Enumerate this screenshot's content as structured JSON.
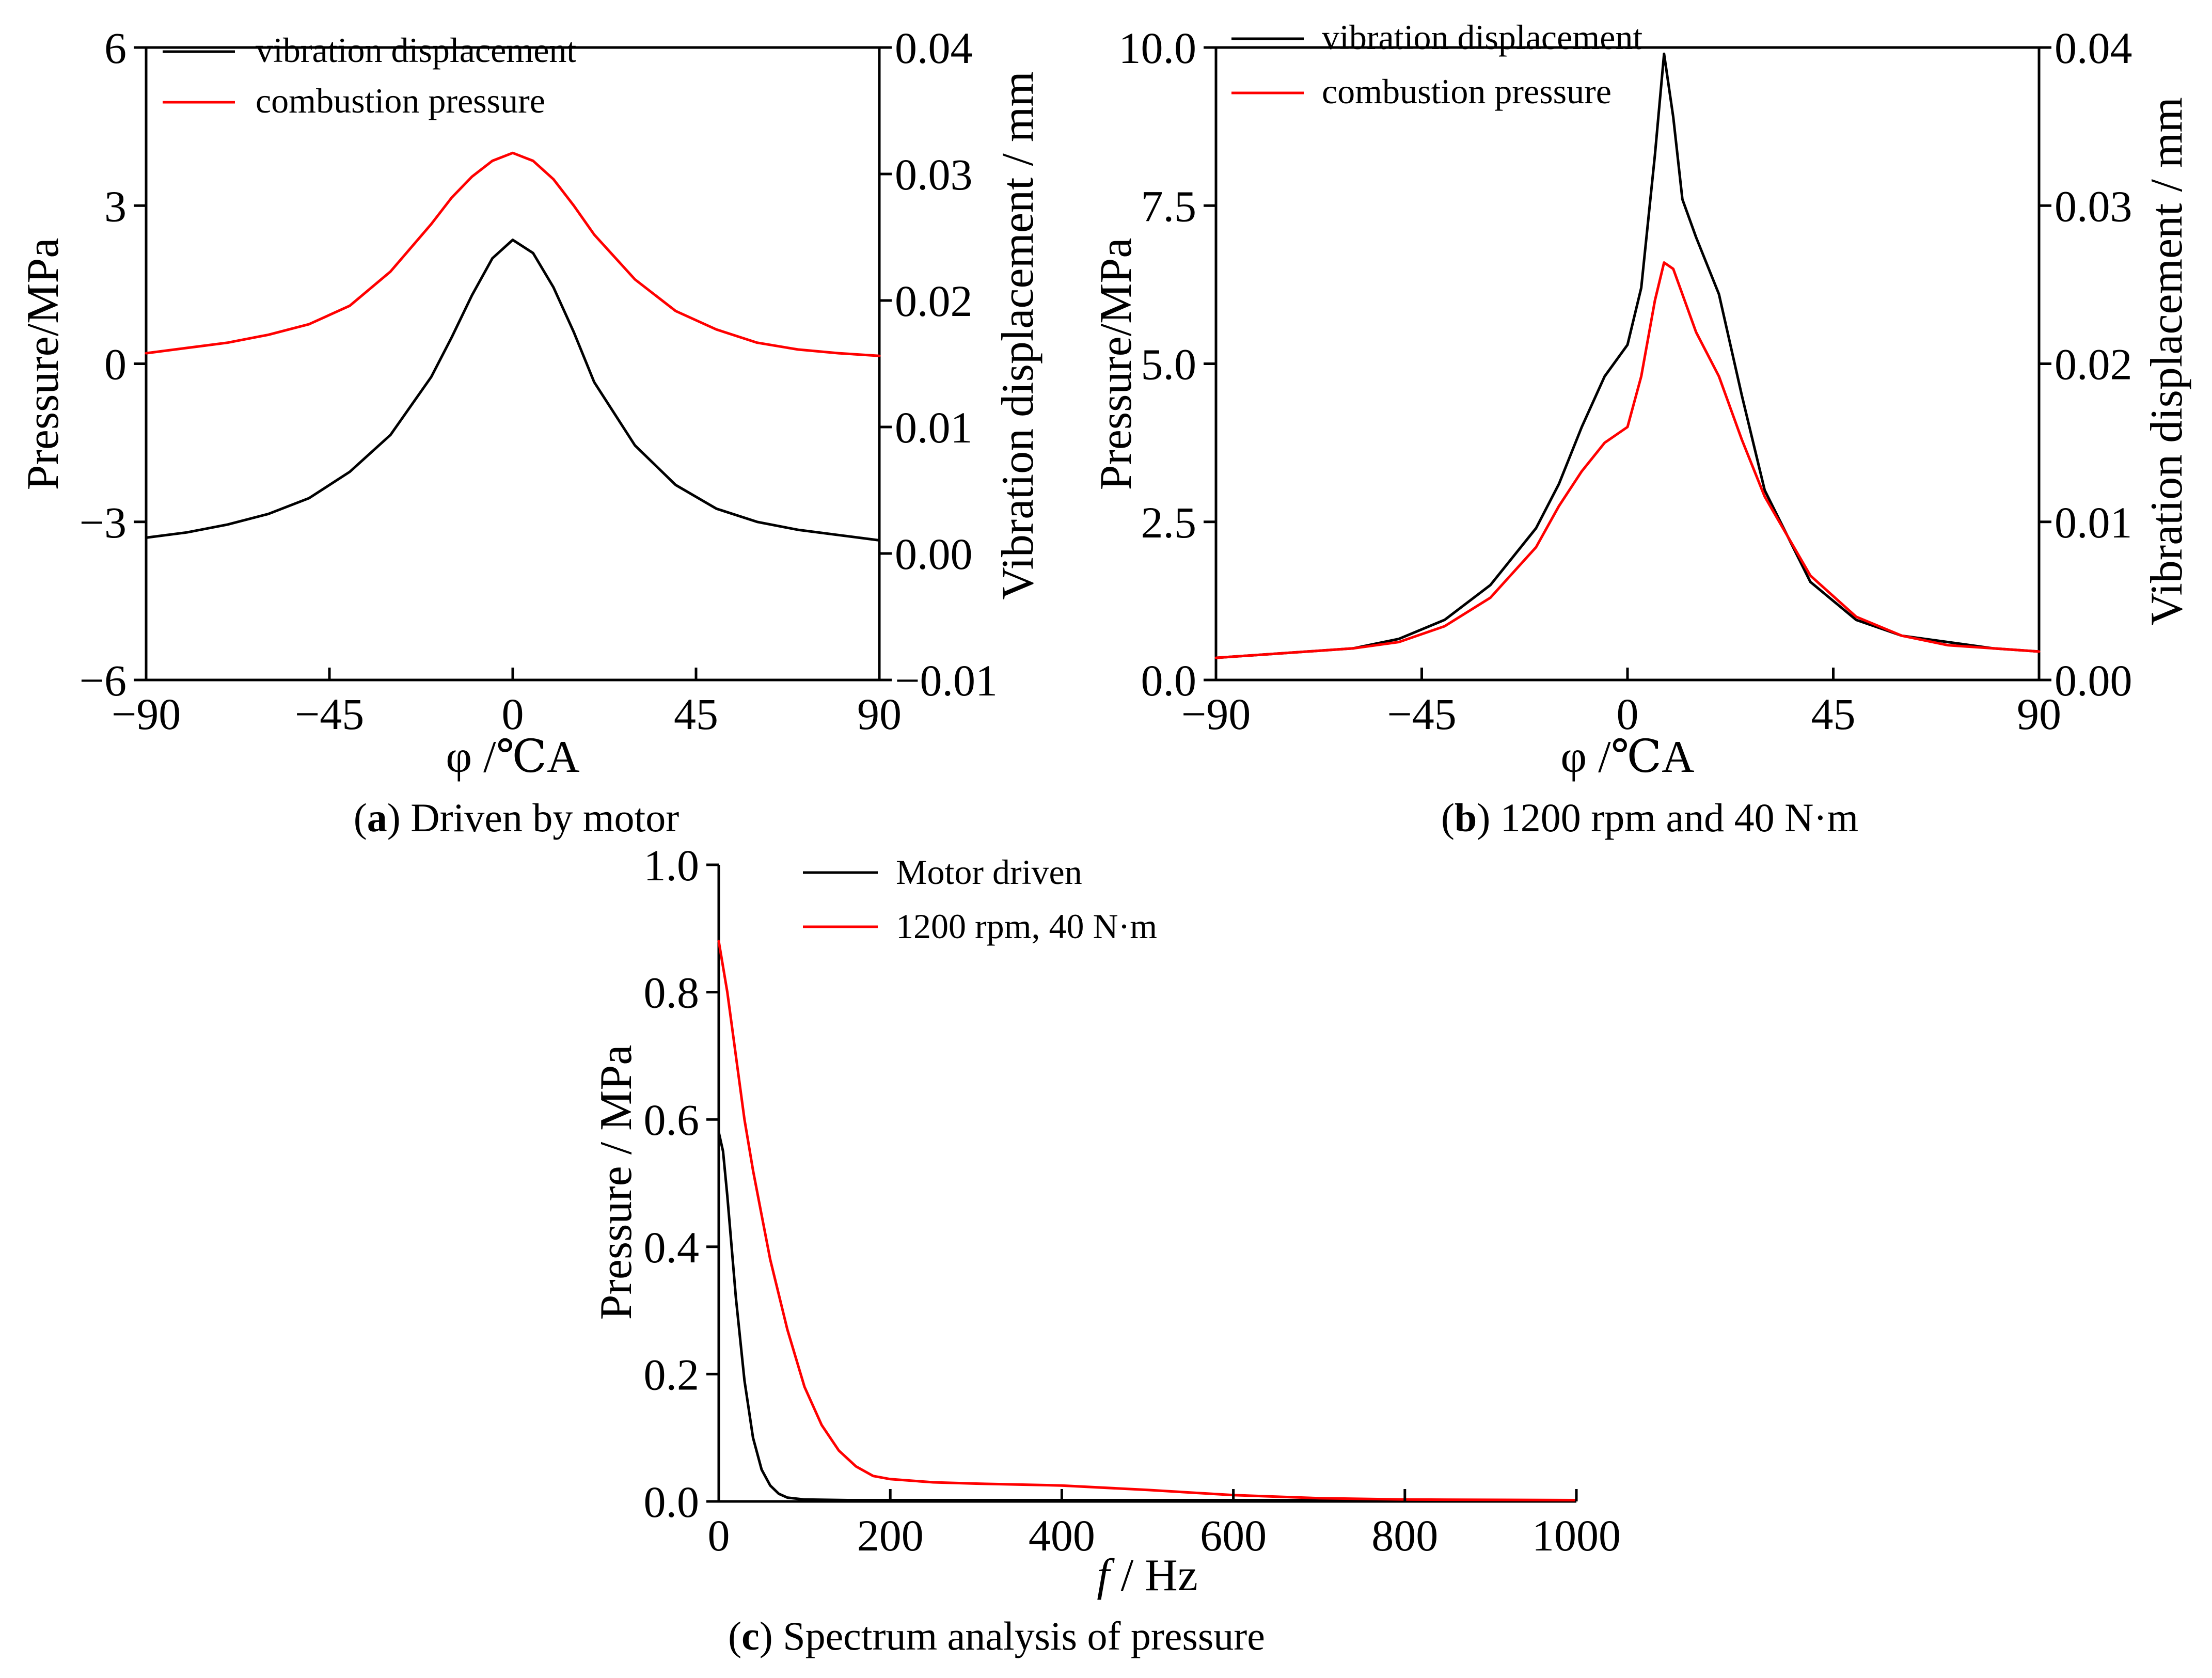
{
  "colors": {
    "vibration": "#000000",
    "pressure": "#ff0000",
    "axis": "#000000"
  },
  "chart_data": [
    {
      "id": "a",
      "type": "line",
      "caption_letter": "a",
      "caption_rest": "Driven by motor",
      "xlabel_symbol": "φ",
      "xlabel_unit": "/℃A",
      "ylabel": "Pressure/MPa",
      "y2label": "Vibration displacement / mm",
      "xlim": [
        -90,
        90
      ],
      "ylim": [
        -6,
        6
      ],
      "y2lim": [
        -0.01,
        0.04
      ],
      "xticks": [
        -90,
        -45,
        0,
        45,
        90
      ],
      "xtick_labels": [
        "−90",
        "−45",
        "0",
        "45",
        "90"
      ],
      "yticks": [
        -6,
        -3,
        0,
        3,
        6
      ],
      "ytick_labels": [
        "−6",
        "−3",
        "0",
        "3",
        "6"
      ],
      "y2ticks": [
        -0.01,
        0.0,
        0.01,
        0.02,
        0.03,
        0.04
      ],
      "y2tick_labels": [
        "−0.01",
        "0.00",
        "0.01",
        "0.02",
        "0.03",
        "0.04"
      ],
      "grid": false,
      "legend_position": "top-left",
      "legend": [
        {
          "label": "vibration displacement",
          "color": "#000000"
        },
        {
          "label": "combustion pressure",
          "color": "#ff0000"
        }
      ],
      "series": [
        {
          "name": "vibration displacement",
          "color": "#000000",
          "x": [
            -90,
            -80,
            -70,
            -60,
            -50,
            -40,
            -30,
            -20,
            -15,
            -10,
            -5,
            0,
            5,
            10,
            15,
            20,
            30,
            40,
            50,
            60,
            70,
            80,
            90
          ],
          "y": [
            -3.3,
            -3.2,
            -3.05,
            -2.85,
            -2.55,
            -2.05,
            -1.35,
            -0.25,
            0.5,
            1.3,
            2.0,
            2.35,
            2.1,
            1.45,
            0.6,
            -0.35,
            -1.55,
            -2.3,
            -2.75,
            -3.0,
            -3.15,
            -3.25,
            -3.35
          ]
        },
        {
          "name": "combustion pressure",
          "color": "#ff0000",
          "x": [
            -90,
            -80,
            -70,
            -60,
            -50,
            -40,
            -30,
            -20,
            -15,
            -10,
            -5,
            0,
            5,
            10,
            15,
            20,
            30,
            40,
            50,
            60,
            70,
            80,
            90
          ],
          "y": [
            0.2,
            0.3,
            0.4,
            0.55,
            0.75,
            1.1,
            1.75,
            2.65,
            3.15,
            3.55,
            3.85,
            4.0,
            3.85,
            3.5,
            3.0,
            2.45,
            1.6,
            1.0,
            0.65,
            0.4,
            0.27,
            0.2,
            0.15
          ]
        }
      ]
    },
    {
      "id": "b",
      "type": "line",
      "caption_letter": "b",
      "caption_rest": "1200 rpm and 40 N·m",
      "xlabel_symbol": "φ",
      "xlabel_unit": "/℃A",
      "ylabel": "Pressure/MPa",
      "y2label": "Vibration displacement / mm",
      "xlim": [
        -90,
        90
      ],
      "ylim": [
        0,
        10
      ],
      "y2lim": [
        0,
        0.04
      ],
      "xticks": [
        -90,
        -45,
        0,
        45,
        90
      ],
      "xtick_labels": [
        "−90",
        "−45",
        "0",
        "45",
        "90"
      ],
      "yticks": [
        0,
        2.5,
        5,
        7.5,
        10
      ],
      "ytick_labels": [
        "0.0",
        "2.5",
        "5.0",
        "7.5",
        "10.0"
      ],
      "y2ticks": [
        0,
        0.01,
        0.02,
        0.03,
        0.04
      ],
      "y2tick_labels": [
        "0.00",
        "0.01",
        "0.02",
        "0.03",
        "0.04"
      ],
      "grid": false,
      "legend_position": "top-left",
      "legend": [
        {
          "label": "vibration displacement",
          "color": "#000000"
        },
        {
          "label": "combustion pressure",
          "color": "#ff0000"
        }
      ],
      "series": [
        {
          "name": "vibration displacement",
          "color": "#000000",
          "x": [
            -90,
            -80,
            -70,
            -60,
            -50,
            -40,
            -30,
            -20,
            -15,
            -10,
            -5,
            0,
            3,
            6,
            8,
            10,
            12,
            15,
            20,
            25,
            30,
            40,
            50,
            60,
            70,
            80,
            90
          ],
          "y": [
            0.35,
            0.4,
            0.45,
            0.5,
            0.65,
            0.95,
            1.5,
            2.4,
            3.1,
            4.0,
            4.8,
            5.3,
            6.2,
            8.3,
            9.9,
            8.9,
            7.6,
            7.0,
            6.1,
            4.5,
            3.0,
            1.55,
            0.95,
            0.7,
            0.6,
            0.5,
            0.45
          ]
        },
        {
          "name": "combustion pressure",
          "color": "#ff0000",
          "x": [
            -90,
            -80,
            -70,
            -60,
            -50,
            -40,
            -30,
            -20,
            -15,
            -10,
            -5,
            0,
            3,
            6,
            8,
            10,
            12,
            15,
            20,
            25,
            30,
            40,
            50,
            60,
            70,
            80,
            90
          ],
          "y": [
            0.35,
            0.4,
            0.45,
            0.5,
            0.6,
            0.85,
            1.3,
            2.1,
            2.75,
            3.3,
            3.75,
            4.0,
            4.8,
            6.0,
            6.6,
            6.5,
            6.1,
            5.5,
            4.8,
            3.8,
            2.9,
            1.65,
            1.0,
            0.7,
            0.55,
            0.5,
            0.45
          ]
        }
      ]
    },
    {
      "id": "c",
      "type": "line",
      "caption_letter": "c",
      "caption_rest": "Spectrum analysis of pressure",
      "xlabel_symbol": "f",
      "xlabel_unit": "/ Hz",
      "ylabel": "Pressure / MPa",
      "xlim": [
        0,
        1000
      ],
      "ylim": [
        0,
        1.0
      ],
      "xticks": [
        0,
        200,
        400,
        600,
        800,
        1000
      ],
      "xtick_labels": [
        "0",
        "200",
        "400",
        "600",
        "800",
        "1000"
      ],
      "yticks": [
        0,
        0.2,
        0.4,
        0.6,
        0.8,
        1.0
      ],
      "ytick_labels": [
        "0.0",
        "0.2",
        "0.4",
        "0.6",
        "0.8",
        "1.0"
      ],
      "grid": false,
      "legend_position": "top-left",
      "legend": [
        {
          "label": "Motor driven",
          "color": "#000000"
        },
        {
          "label": "1200 rpm, 40 N·m",
          "color": "#ff0000"
        }
      ],
      "series": [
        {
          "name": "Motor driven",
          "color": "#000000",
          "x": [
            0,
            5,
            10,
            15,
            20,
            30,
            40,
            50,
            60,
            70,
            80,
            100,
            150,
            200,
            400,
            600,
            1000
          ],
          "y": [
            0.58,
            0.55,
            0.48,
            0.4,
            0.32,
            0.19,
            0.1,
            0.05,
            0.025,
            0.012,
            0.006,
            0.003,
            0.002,
            0.002,
            0.002,
            0.002,
            0.002
          ]
        },
        {
          "name": "1200 rpm, 40 N·m",
          "color": "#ff0000",
          "x": [
            0,
            10,
            20,
            30,
            40,
            50,
            60,
            80,
            100,
            120,
            140,
            160,
            180,
            200,
            250,
            300,
            400,
            500,
            600,
            700,
            800,
            1000
          ],
          "y": [
            0.88,
            0.8,
            0.7,
            0.6,
            0.52,
            0.45,
            0.38,
            0.27,
            0.18,
            0.12,
            0.08,
            0.055,
            0.04,
            0.035,
            0.03,
            0.028,
            0.025,
            0.018,
            0.01,
            0.005,
            0.003,
            0.002
          ]
        }
      ]
    }
  ]
}
